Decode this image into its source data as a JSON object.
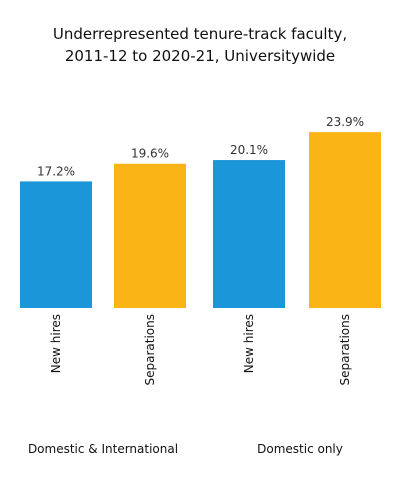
{
  "chart_data": {
    "type": "bar",
    "title": [
      "Underrepresented tenure-track faculty,",
      "2011-12 to 2020-21, Universitywide"
    ],
    "groups": [
      {
        "label": "Domestic & International",
        "bars": [
          {
            "category": "New hires",
            "value": 17.2,
            "label": "17.2%"
          },
          {
            "category": "Separations",
            "value": 19.6,
            "label": "19.6%"
          }
        ]
      },
      {
        "label": "Domestic only",
        "bars": [
          {
            "category": "New hires",
            "value": 20.1,
            "label": "20.1%"
          },
          {
            "category": "Separations",
            "value": 23.9,
            "label": "23.9%"
          }
        ]
      }
    ],
    "colors": {
      "New hires": "#1a96d9",
      "Separations": "#fbb415"
    },
    "ylim": [
      0,
      25
    ],
    "grid": false,
    "xlabel": "",
    "ylabel": ""
  }
}
